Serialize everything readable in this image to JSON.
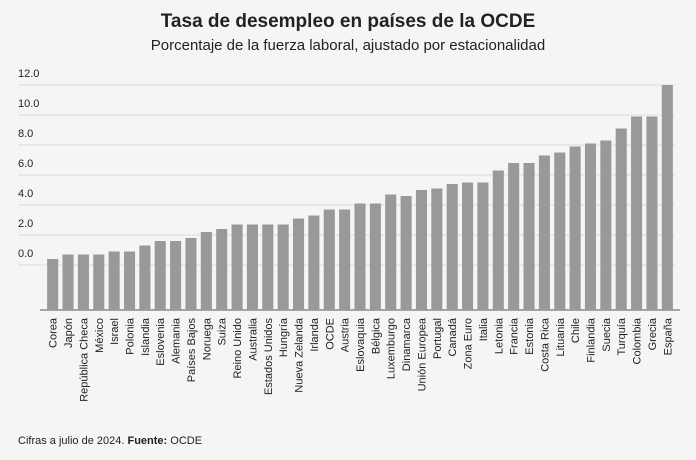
{
  "chart_data": {
    "type": "bar",
    "title": "Tasa de desempleo en países de la OCDE",
    "subtitle": "Porcentaje de la fuerza laboral, ajustado por estacionalidad",
    "categories": [
      "Corea",
      "Japón",
      "República Checa",
      "México",
      "Israel",
      "Polonia",
      "Islandia",
      "Eslovenia",
      "Alemania",
      "Países Bajos",
      "Noruega",
      "Suiza",
      "Reino Unido",
      "Australia",
      "Estados Unidos",
      "Hungría",
      "Nueva Zelanda",
      "Irlanda",
      "OCDE",
      "Austria",
      "Eslovaquia",
      "Bélgica",
      "Luxemburgo",
      "Dinamarca",
      "Unión Europea",
      "Portugal",
      "Canadá",
      "Zona Euro",
      "Italia",
      "Letonia",
      "Francia",
      "Estonia",
      "Costa Rica",
      "Lituania",
      "Chile",
      "Finlandia",
      "Suecia",
      "Turquía",
      "Colombia",
      "Grecia",
      "España"
    ],
    "values": [
      0.4,
      0.7,
      0.7,
      0.7,
      0.9,
      0.9,
      1.3,
      1.6,
      1.6,
      1.8,
      2.2,
      2.4,
      2.7,
      2.7,
      2.7,
      2.7,
      3.1,
      3.3,
      3.7,
      3.7,
      4.1,
      4.1,
      4.7,
      4.6,
      5.0,
      5.1,
      5.4,
      5.5,
      5.5,
      6.3,
      6.8,
      6.8,
      7.3,
      7.5,
      7.9,
      8.1,
      8.3,
      9.1,
      9.9,
      9.9,
      12.0
    ],
    "color": "#999999",
    "ylim": [
      -3,
      13
    ],
    "yticks": [
      {
        "value": 0,
        "label": "0.0"
      },
      {
        "value": 2,
        "label": "2.0"
      },
      {
        "value": 4,
        "label": "4.0"
      },
      {
        "value": 6,
        "label": "6.0"
      },
      {
        "value": 8,
        "label": "8.0"
      },
      {
        "value": 10,
        "label": "10.0"
      },
      {
        "value": 12,
        "label": "12.0"
      }
    ],
    "grid": true,
    "note": "Cifras a julio de 2024.",
    "source_label": "Fuente:",
    "source": "OCDE"
  }
}
